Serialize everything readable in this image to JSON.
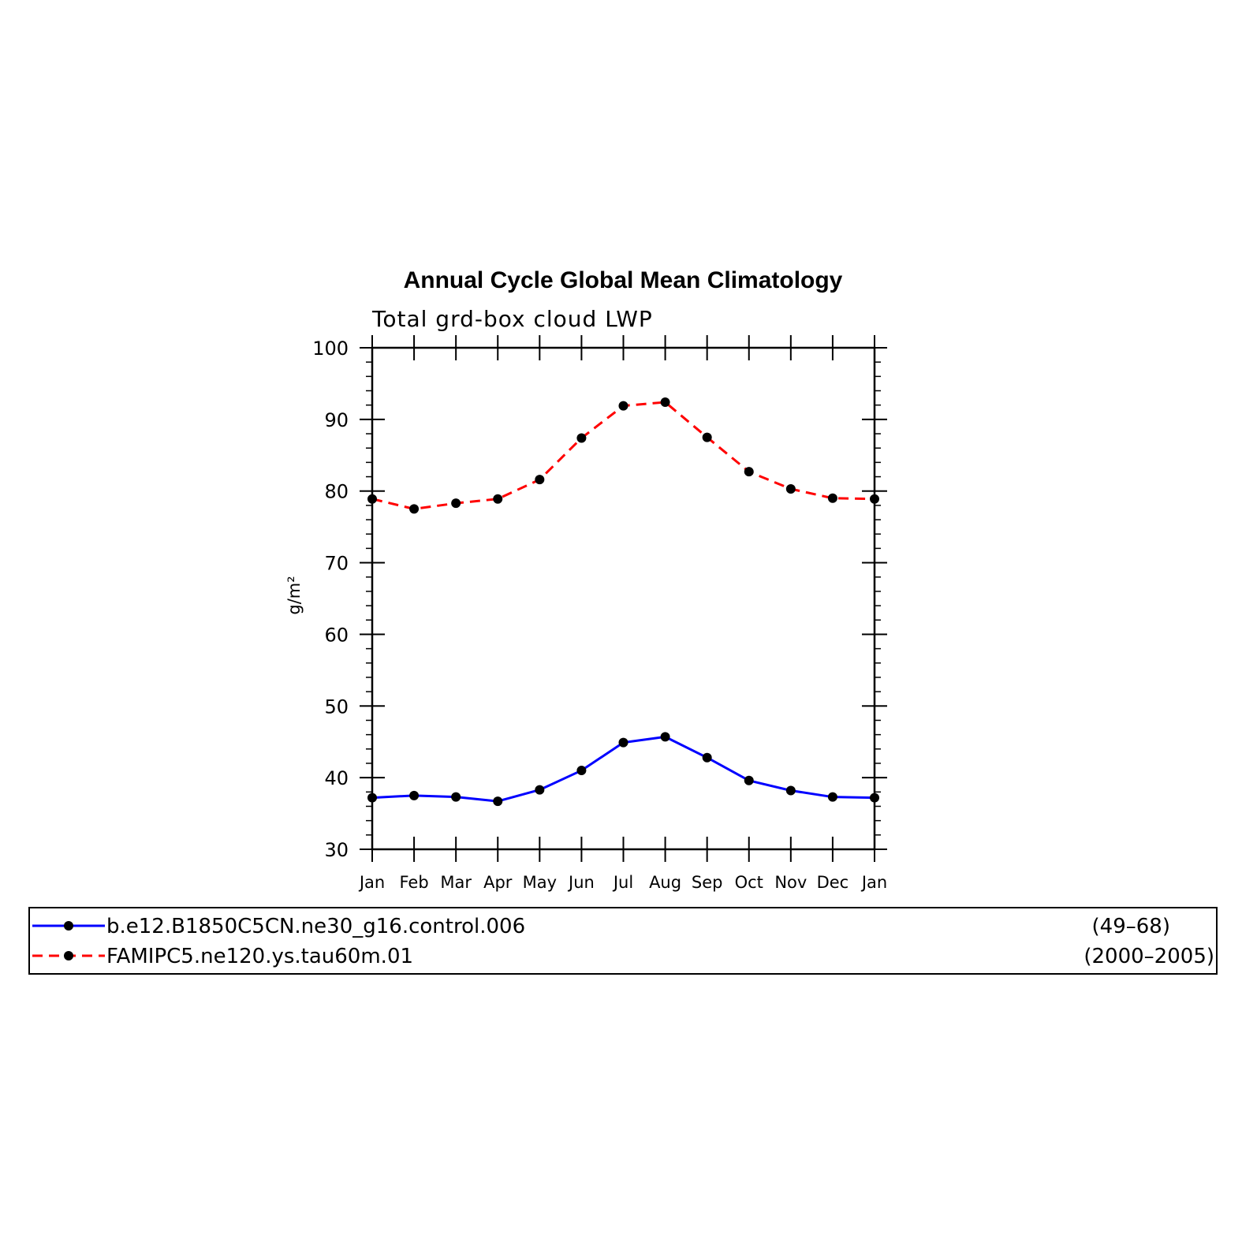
{
  "chart_data": {
    "type": "line",
    "title": "Annual Cycle Global Mean Climatology",
    "subtitle": "Total grd-box cloud LWP",
    "ylabel": "g/m²",
    "xlabel": "",
    "categories": [
      "Jan",
      "Feb",
      "Mar",
      "Apr",
      "May",
      "Jun",
      "Jul",
      "Aug",
      "Sep",
      "Oct",
      "Nov",
      "Dec",
      "Jan"
    ],
    "ylim": [
      30,
      100
    ],
    "yticks": [
      30,
      40,
      50,
      60,
      70,
      80,
      90,
      100
    ],
    "ytick_labels": [
      "30",
      "40",
      "50",
      "60",
      "70",
      "80",
      "90",
      "100"
    ],
    "grid": false,
    "legend_position": "bottom",
    "series": [
      {
        "name": "b.e12.B1850C5CN.ne30_g16.control.006",
        "years": "(49–68)",
        "color": "#0000ff",
        "style": "solid",
        "values": [
          37.2,
          37.5,
          37.3,
          36.7,
          38.3,
          41.0,
          44.9,
          45.7,
          42.8,
          39.6,
          38.2,
          37.3,
          37.2
        ]
      },
      {
        "name": "FAMIPC5.ne120.ys.tau60m.01",
        "years": "(2000–2005)",
        "color": "#ff0000",
        "style": "dashed",
        "values": [
          78.9,
          77.5,
          78.3,
          78.9,
          81.6,
          87.4,
          91.9,
          92.4,
          87.5,
          82.7,
          80.3,
          79.0,
          78.9
        ]
      }
    ]
  }
}
